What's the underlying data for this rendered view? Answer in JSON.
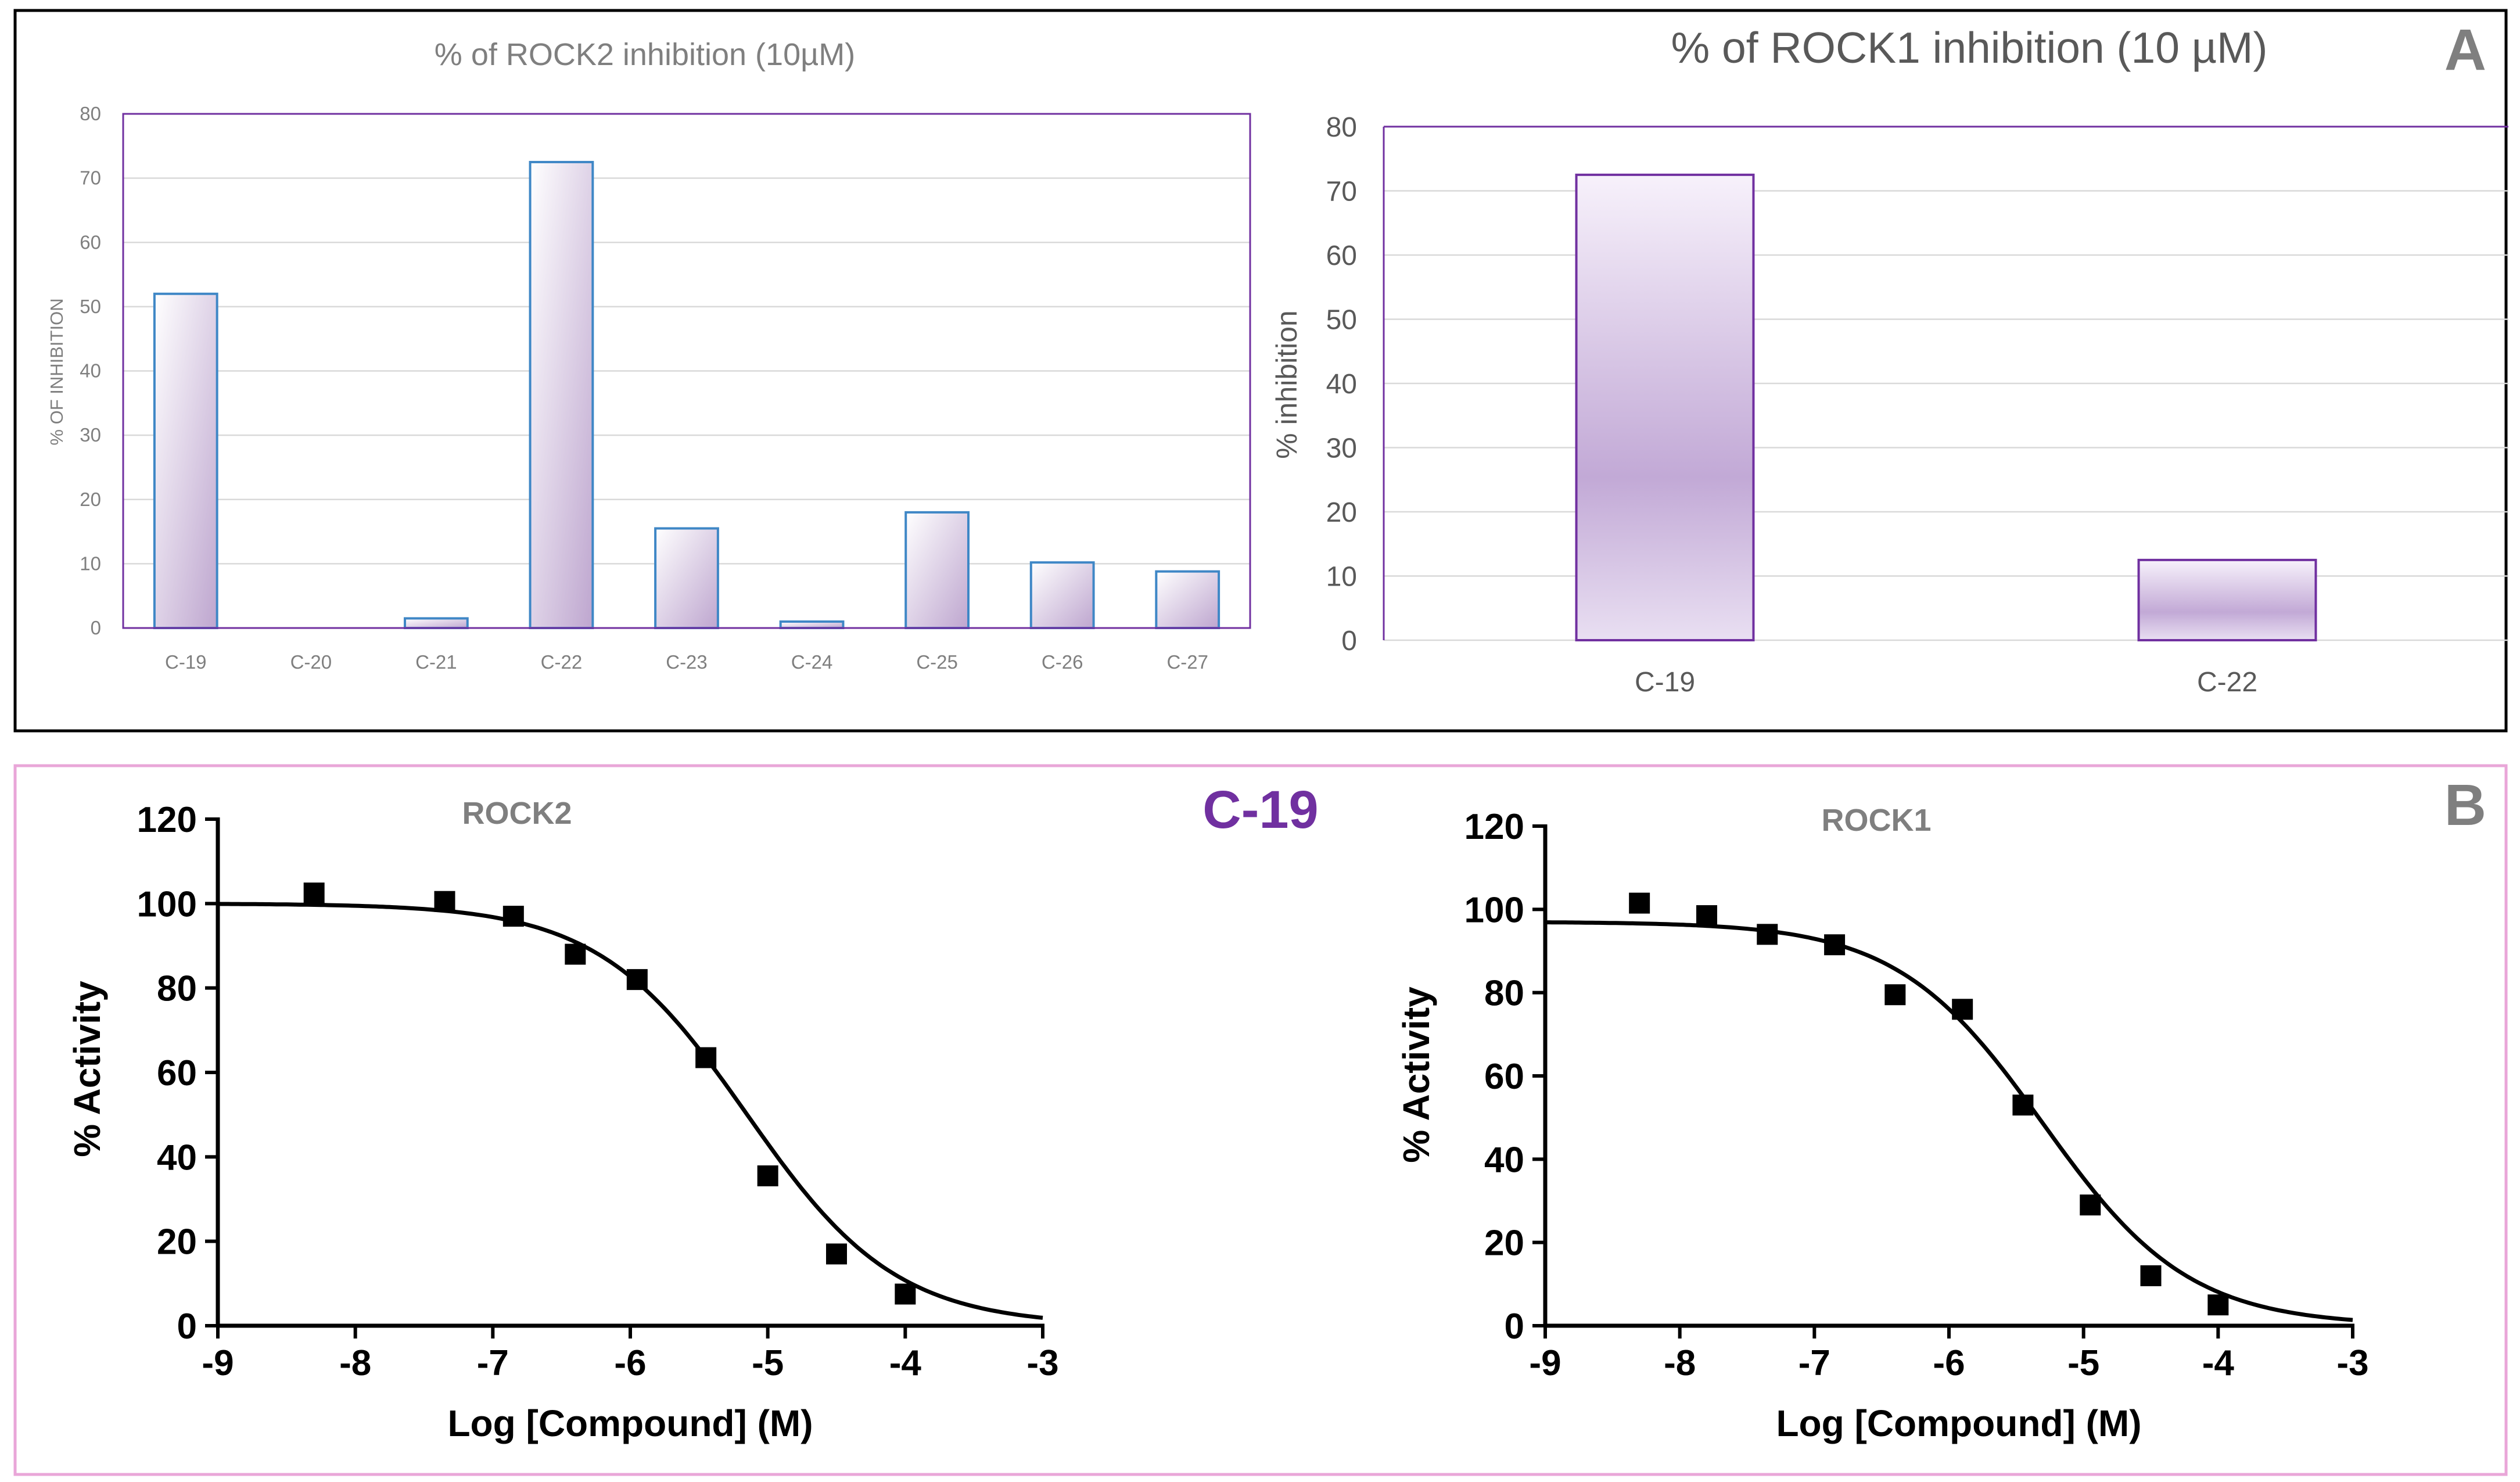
{
  "panel_a": {
    "label": "A"
  },
  "panel_b": {
    "label": "B",
    "compound_label": "C-19"
  },
  "chart_data": [
    {
      "type": "bar",
      "title": "% of ROCK2 inhibition (10µM)",
      "xlabel": "",
      "ylabel": "% OF INHIBITION",
      "ylim": [
        0,
        80
      ],
      "yticks": [
        0,
        10,
        20,
        30,
        40,
        50,
        60,
        70,
        80
      ],
      "categories": [
        "C-19",
        "C-20",
        "C-21",
        "C-22",
        "C-23",
        "C-24",
        "C-25",
        "C-26",
        "C-27"
      ],
      "values": [
        52,
        0,
        1.5,
        72.5,
        15.5,
        1,
        18,
        10.2,
        8.8
      ],
      "grid": true,
      "colors": {
        "bar_edge": "#3f87c6",
        "bar_fill_dark": "#bea6cf",
        "bar_fill_light": "#ffffff",
        "frame": "#7030a0"
      }
    },
    {
      "type": "bar",
      "title": "% of ROCK1 inhibition (10 µM)",
      "xlabel": "",
      "ylabel": "% inhibition",
      "ylim": [
        0,
        80
      ],
      "yticks": [
        0,
        10,
        20,
        30,
        40,
        50,
        60,
        70,
        80
      ],
      "categories": [
        "C-19",
        "C-22"
      ],
      "values": [
        72.5,
        12.5
      ],
      "grid": true,
      "colors": {
        "bar_edge": "#7030a0",
        "bar_fill_dark": "#c2a9d6",
        "bar_fill_light": "#f7f1fb",
        "frame": "#7030a0"
      }
    },
    {
      "type": "scatter",
      "title": "ROCK2",
      "xlabel": "Log [Compound] (M)",
      "ylabel": "% Activity",
      "xlim": [
        -9,
        -3
      ],
      "ylim": [
        0,
        120
      ],
      "xticks": [
        -9,
        -8,
        -7,
        -6,
        -5,
        -4,
        -3
      ],
      "yticks": [
        0,
        20,
        40,
        60,
        80,
        100,
        120
      ],
      "points": [
        [
          -8.3,
          102.5
        ],
        [
          -7.35,
          100.5
        ],
        [
          -6.85,
          97
        ],
        [
          -6.4,
          88
        ],
        [
          -5.95,
          82
        ],
        [
          -5.45,
          63.5
        ],
        [
          -5.0,
          35.5
        ],
        [
          -4.5,
          17
        ],
        [
          -4.0,
          7.5
        ]
      ],
      "fit": {
        "top": 100,
        "bottom": 0,
        "logIC50": -5.15,
        "hill": 0.8
      },
      "grid": false
    },
    {
      "type": "scatter",
      "title": "ROCK1",
      "xlabel": "Log [Compound] (M)",
      "ylabel": "% Activity",
      "xlim": [
        -9,
        -3
      ],
      "ylim": [
        0,
        120
      ],
      "xticks": [
        -9,
        -8,
        -7,
        -6,
        -5,
        -4,
        -3
      ],
      "yticks": [
        0,
        20,
        40,
        60,
        80,
        100,
        120
      ],
      "points": [
        [
          -8.3,
          101.5
        ],
        [
          -7.8,
          98.5
        ],
        [
          -7.35,
          94
        ],
        [
          -6.85,
          91.5
        ],
        [
          -6.4,
          79.5
        ],
        [
          -5.9,
          76
        ],
        [
          -5.45,
          53
        ],
        [
          -4.95,
          29
        ],
        [
          -4.5,
          12
        ],
        [
          -4.0,
          5
        ]
      ],
      "fit": {
        "top": 97,
        "bottom": 0,
        "logIC50": -5.3,
        "hill": 0.8
      },
      "grid": false
    }
  ]
}
